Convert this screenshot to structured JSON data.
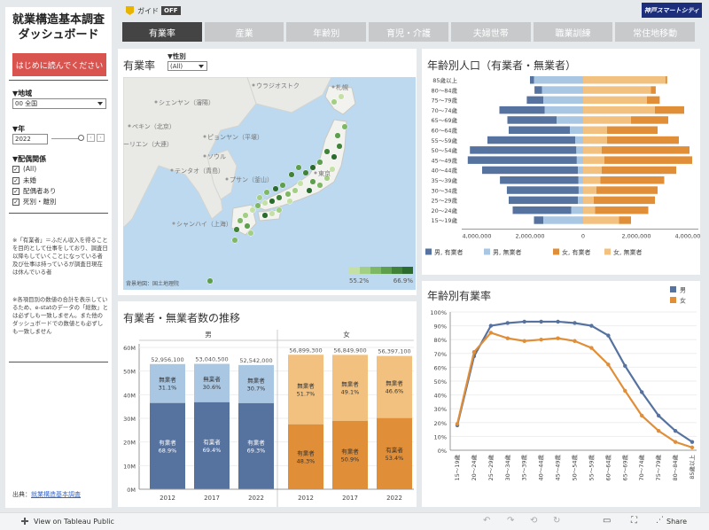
{
  "header": {
    "guide_label": "ガイド",
    "guide_state": "OFF",
    "brand": "神戸スマートシティ"
  },
  "tabs": [
    {
      "label": "有業率",
      "active": true
    },
    {
      "label": "産業",
      "active": false
    },
    {
      "label": "年齢別",
      "active": false
    },
    {
      "label": "育児・介護",
      "active": false
    },
    {
      "label": "夫婦世帯",
      "active": false
    },
    {
      "label": "職業訓練",
      "active": false
    },
    {
      "label": "常住地移動",
      "active": false
    }
  ],
  "sidebar": {
    "title_line1": "就業構造基本調査",
    "title_line2": "ダッシュボード",
    "readme_button": "はじめに読んでください",
    "region_label": "▼地域",
    "region_value": "00 全国",
    "year_label": "▼年",
    "year_value": "2022",
    "spouse_label": "▼配偶関係",
    "spouse_options": [
      {
        "label": "(All)",
        "checked": true
      },
      {
        "label": "未婚",
        "checked": true
      },
      {
        "label": "配偶者あり",
        "checked": true
      },
      {
        "label": "死別・離別",
        "checked": true
      }
    ],
    "note1": "※「有業者」＝ふだん収入を得ることを目的として仕事をしており、調査日以降もしていくことになっている者及び仕事は持っているが調査日現在は休んでいる者",
    "note2": "※各項目別の数値の合計を表示しているため、e-statのデータの「総数」とは必ずしも一致しません。また他のダッシュボードでの数値とも必ずしも一致しません",
    "source_label": "出典：",
    "source_link": "就業構造基本調査"
  },
  "map_panel": {
    "title": "有業率",
    "gender_label": "▼性別",
    "gender_value": "(All)",
    "legend_min": "55.2%",
    "legend_max": "66.9%",
    "attribution": "背景地図：国土地理院",
    "colors": [
      "#c5e0a5",
      "#a3cf84",
      "#7fb865",
      "#5d9f4c",
      "#3f8238",
      "#2b6b2e"
    ],
    "places": [
      {
        "label": "ウラジオストク"
      },
      {
        "label": "札幌"
      },
      {
        "label": "シェンヤン（瀋陽）"
      },
      {
        "label": "ペキン（北京）"
      },
      {
        "label": "ピョンヤン（平壌）"
      },
      {
        "label": "ソウル"
      },
      {
        "label": "テンタオ（青島）"
      },
      {
        "label": "ーリエン（大連）"
      },
      {
        "label": "プサン（釜山）"
      },
      {
        "label": "シャンハイ（上海）"
      },
      {
        "label": "東京"
      }
    ]
  },
  "pyramid_panel": {
    "title": "年齢別人口（有業者・無業者）",
    "x_ticks": [
      "4,000,000",
      "2,000,000",
      "0",
      "2,000,000",
      "4,000,000"
    ],
    "legend": [
      {
        "label": "男, 有業者",
        "color": "#56729f"
      },
      {
        "label": "男, 無業者",
        "color": "#a9c7e3"
      },
      {
        "label": "女, 有業者",
        "color": "#e08e38"
      },
      {
        "label": "女, 無業者",
        "color": "#f3c17f"
      }
    ]
  },
  "trend_panel": {
    "title": "有業者・無業者数の推移",
    "groups": [
      "男",
      "女"
    ],
    "y_ticks": [
      "0M",
      "10M",
      "20M",
      "30M",
      "40M",
      "50M",
      "60M"
    ],
    "employed_label": "有業者",
    "unemployed_label": "無業者"
  },
  "rate_panel": {
    "title": "年齢別有業率",
    "legend": [
      {
        "label": "男",
        "color": "#56729f"
      },
      {
        "label": "女",
        "color": "#e08e38"
      }
    ],
    "y_ticks": [
      "0%",
      "10%",
      "20%",
      "30%",
      "40%",
      "50%",
      "60%",
      "70%",
      "80%",
      "90%",
      "100%"
    ]
  },
  "footer": {
    "view_label": "View on Tableau Public",
    "share_label": "Share"
  },
  "chart_data": [
    {
      "type": "bar",
      "title": "年齢別人口（有業者・無業者）",
      "categories": [
        "85歳以上",
        "80～84歳",
        "75～79歳",
        "70～74歳",
        "65～69歳",
        "60～64歳",
        "55～59歳",
        "50～54歳",
        "45～49歳",
        "40～44歳",
        "35～39歳",
        "30～34歳",
        "25～29歳",
        "20～24歳",
        "15～19歳"
      ],
      "series": [
        {
          "name": "男, 有業者",
          "values": [
            150000,
            280000,
            620000,
            1700000,
            1850000,
            2300000,
            3300000,
            4000000,
            4100000,
            3600000,
            2950000,
            2700000,
            2600000,
            2200000,
            350000
          ]
        },
        {
          "name": "男, 無業者",
          "values": [
            1850000,
            1550000,
            1500000,
            1450000,
            1000000,
            500000,
            300000,
            260000,
            240000,
            200000,
            180000,
            170000,
            200000,
            450000,
            1500000
          ]
        },
        {
          "name": "女, 有業者",
          "values": [
            60000,
            180000,
            480000,
            1100000,
            1400000,
            1900000,
            2700000,
            3300000,
            3300000,
            2800000,
            2400000,
            2300000,
            2300000,
            2000000,
            450000
          ]
        },
        {
          "name": "女, 無業者",
          "values": [
            3100000,
            2550000,
            2400000,
            2700000,
            1800000,
            900000,
            900000,
            700000,
            800000,
            700000,
            650000,
            500000,
            400000,
            450000,
            1350000
          ]
        }
      ],
      "xlim": [
        -4500000,
        4500000
      ]
    },
    {
      "type": "bar",
      "title": "有業者・無業者数の推移",
      "categories": [
        "2012",
        "2017",
        "2022"
      ],
      "ylim": [
        0,
        60000000
      ],
      "series": [
        {
          "name": "男",
          "totals": [
            "52,956,100",
            "53,040,500",
            "52,542,000"
          ],
          "total_values": [
            52956100,
            53040500,
            52542000
          ],
          "employed_pct": [
            68.9,
            69.4,
            69.3
          ],
          "unemployed_pct": [
            31.1,
            30.6,
            30.7
          ]
        },
        {
          "name": "女",
          "totals": [
            "56,899,300",
            "56,849,900",
            "56,397,100"
          ],
          "total_values": [
            56899300,
            56849900,
            56397100
          ],
          "employed_pct": [
            48.3,
            50.9,
            53.4
          ],
          "unemployed_pct": [
            51.7,
            49.1,
            46.6
          ]
        }
      ]
    },
    {
      "type": "line",
      "title": "年齢別有業率",
      "categories": [
        "15～19歳",
        "20～24歳",
        "25～29歳",
        "30～34歳",
        "35～39歳",
        "40～44歳",
        "45～49歳",
        "50～54歳",
        "55～59歳",
        "60～64歳",
        "65～69歳",
        "70～74歳",
        "75～79歳",
        "80～84歳",
        "85歳以上"
      ],
      "ylim": [
        0,
        100
      ],
      "series": [
        {
          "name": "男",
          "values": [
            18,
            68,
            90,
            92,
            93,
            93,
            93,
            92,
            90,
            83,
            61,
            42,
            25,
            14,
            6
          ]
        },
        {
          "name": "女",
          "values": [
            19,
            71,
            85,
            81,
            79,
            80,
            81,
            79,
            74,
            62,
            43,
            25,
            14,
            6,
            2
          ]
        }
      ]
    }
  ]
}
